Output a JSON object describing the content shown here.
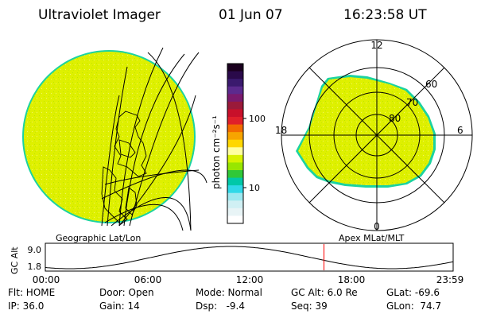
{
  "header": {
    "title": "Ultraviolet Imager",
    "date": "01 Jun 07",
    "time": "16:23:58 UT"
  },
  "colorbar": {
    "unit_label": "photon cm⁻²s⁻¹",
    "tick_labels": [
      "100",
      "10"
    ],
    "colors": [
      "#1a001f",
      "#2a0a4a",
      "#3a1a6e",
      "#5c2a8e",
      "#7a1a6e",
      "#9a1a3a",
      "#c8102a",
      "#e0202a",
      "#f26a00",
      "#f7a400",
      "#ffd700",
      "#ffffa0",
      "#d8f200",
      "#98e600",
      "#30c838",
      "#00c8a8",
      "#30d8e8",
      "#9ce8f0",
      "#d0f0f4",
      "#e8f4f6",
      "#ffffff"
    ]
  },
  "geo_map": {
    "fill_color": "#dff000",
    "edge_color": "#1bd3a0"
  },
  "polar_map": {
    "clock_labels": [
      "12",
      "18",
      "6",
      "0"
    ],
    "lat_labels": [
      "60",
      "70",
      "80"
    ],
    "fill_color": "#dff000"
  },
  "panel_labels": {
    "left": "Geographic Lat/Lon",
    "right": "Apex MLat/MLT"
  },
  "altitude_plot": {
    "ylabel": "GC Alt",
    "y_ticks": [
      "9.0",
      "1.8"
    ],
    "x_ticks": [
      "00:00",
      "06:00",
      "12:00",
      "18:00",
      "23:59"
    ],
    "marker_time": "16:23:58",
    "marker_color": "#ff0000"
  },
  "status": {
    "flt": "Flt: HOME",
    "ip": "IP: 36.0",
    "door": "Door: Open",
    "gain": "Gain: 14",
    "mode": "Mode: Normal",
    "dsp": "Dsp:   -9.4",
    "gc_alt": "GC Alt: 6.0 Re",
    "seq": "Seq: 39",
    "glat": "GLat: -69.6",
    "glon": "GLon:  74.7"
  }
}
